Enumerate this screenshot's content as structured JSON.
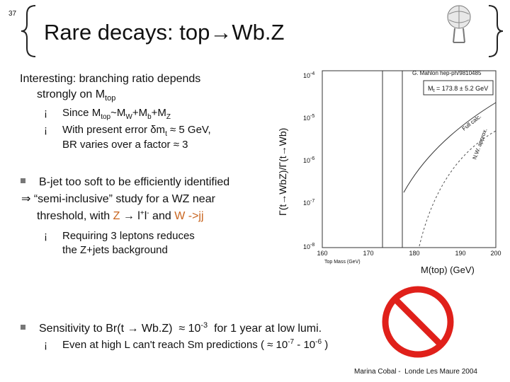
{
  "slide_number": "37",
  "title": "Rare decays: top→Wb.Z",
  "intro": [
    "Interesting: branching ratio depends",
    "strongly on M",
    "top"
  ],
  "bullets1": [
    [
      "Since M",
      "top",
      "~M",
      "W",
      "+M",
      "b",
      "+M",
      "Z"
    ],
    [
      "With present error δm",
      "t",
      " ≈ 5 GeV,"
    ],
    [
      "BR varies over a factor ≈ 3"
    ]
  ],
  "bjet": [
    "B-jet too soft to be efficiently identified",
    "⇒ “semi-inclusive” study for a WZ near",
    "threshold, with ",
    "Z",
    " → l",
    "+",
    "l",
    "-",
    " and ",
    "W ->jj"
  ],
  "bullets2": [
    "Requiring 3 leptons reduces",
    "the Z+jets background"
  ],
  "sensitivity": [
    "Sensitivity to Br(t → Wb.Z)  ≈ 10",
    "-3",
    "  for 1 year at low lumi."
  ],
  "even": [
    "Even at high L can't reach Sm predictions ( ≈ 10",
    "-7",
    " - 10",
    "-6",
    " )"
  ],
  "footer": "Marina Cobal -  Londe Les Maure 2004",
  "plot": {
    "ylabel": "Γ(t→WbZ)/Γ(t→Wb)",
    "reference": "G. Mahlon hep-ph/9810485",
    "mass_box": [
      "M",
      "t",
      " = 173.8 ± 5.2 GeV"
    ],
    "curve_labels": [
      "Full calc.",
      "N.W. approx."
    ],
    "yticks": [
      [
        "10",
        "-4"
      ],
      [
        "10",
        "-5"
      ],
      [
        "10",
        "-6"
      ],
      [
        "10",
        "-7"
      ],
      [
        "10",
        "-8"
      ]
    ],
    "xticks": [
      "160",
      "170",
      "180",
      "190",
      "200"
    ],
    "xlabel": "Top Mass (GeV)",
    "caption": "M(top) (GeV)"
  }
}
